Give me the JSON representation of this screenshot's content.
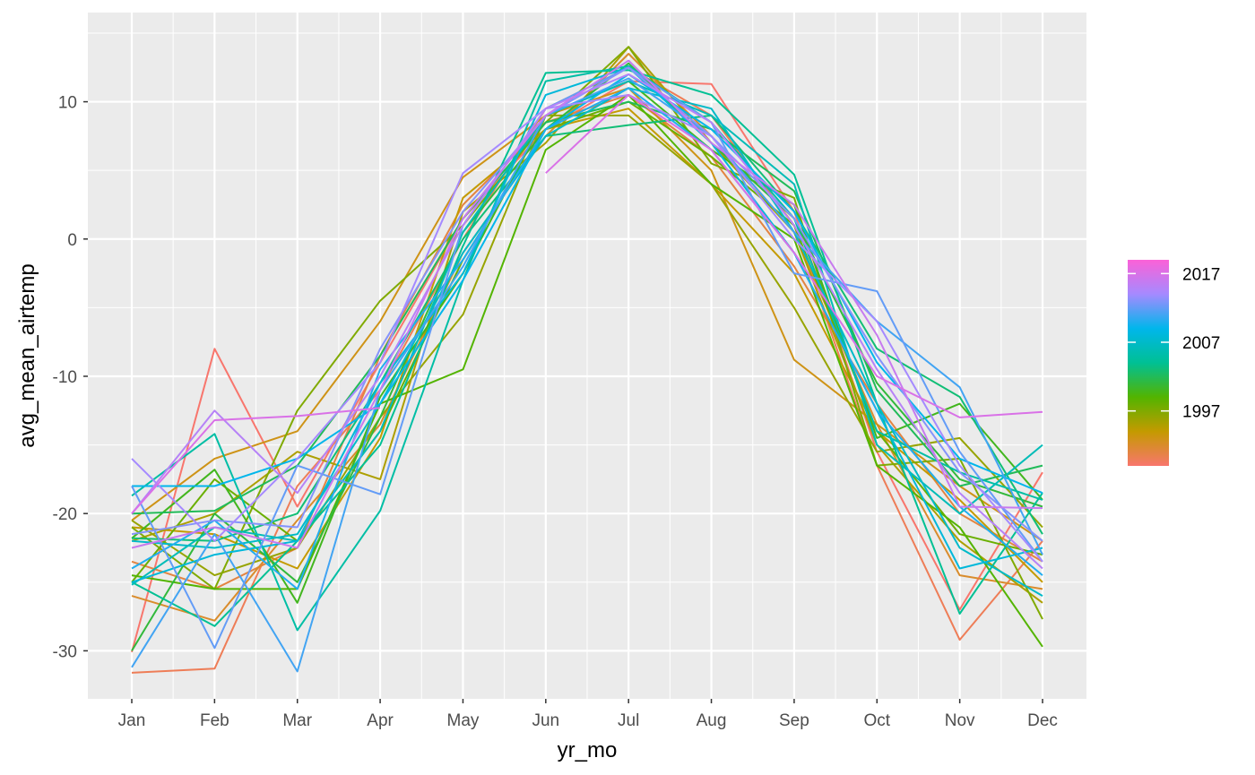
{
  "chart_data": {
    "type": "line",
    "title": "",
    "xlabel": "yr_mo",
    "ylabel": "avg_mean_airtemp",
    "categories": [
      "Jan",
      "Feb",
      "Mar",
      "Apr",
      "May",
      "Jun",
      "Jul",
      "Aug",
      "Sep",
      "Oct",
      "Nov",
      "Dec"
    ],
    "ylim": [
      -33.5,
      16.5
    ],
    "yticks": [
      -30,
      -20,
      -10,
      0,
      10
    ],
    "ytick_labels": [
      "-30",
      "-20",
      "-10",
      "0",
      "10"
    ],
    "grid": true,
    "background": "#ebebeb",
    "legend": {
      "position": "right",
      "type": "continuous-colorbar",
      "range": [
        1989,
        2019
      ],
      "tick_values": [
        1997,
        2007,
        2017
      ],
      "tick_labels": [
        "1997",
        "2007",
        "2017"
      ],
      "color_stops": [
        "#F8766D",
        "#C49A00",
        "#53B400",
        "#00C094",
        "#00B6EB",
        "#A58AFF",
        "#FB61D7"
      ]
    },
    "series": [
      {
        "year": 1989,
        "values": [
          -30.1,
          -8.0,
          -19.5,
          -9.0,
          1.5,
          8.0,
          11.5,
          11.3,
          2.0,
          -15.5,
          -27.0,
          -17.0
        ]
      },
      {
        "year": 1990,
        "values": [
          -31.6,
          -31.3,
          -18.0,
          -11.0,
          0.0,
          9.5,
          12.5,
          9.0,
          1.0,
          -16.5,
          -29.2,
          -22.0
        ]
      },
      {
        "year": 1991,
        "values": [
          -23.5,
          -25.5,
          -22.5,
          -8.5,
          2.5,
          8.5,
          10.5,
          6.0,
          -2.0,
          -12.0,
          -20.0,
          -23.5
        ]
      },
      {
        "year": 1992,
        "values": [
          -26.0,
          -27.8,
          -20.5,
          -13.5,
          -1.0,
          7.5,
          13.5,
          7.5,
          0.5,
          -13.5,
          -24.5,
          -25.5
        ]
      },
      {
        "year": 1993,
        "values": [
          -20.5,
          -16.0,
          -14.0,
          -6.0,
          4.5,
          9.0,
          11.0,
          5.0,
          -8.8,
          -13.5,
          -18.0,
          -22.0
        ]
      },
      {
        "year": 1994,
        "values": [
          -21.0,
          -21.5,
          -24.0,
          -14.5,
          3.0,
          8.0,
          9.5,
          4.0,
          -2.5,
          -14.0,
          -19.0,
          -25.0
        ]
      },
      {
        "year": 1995,
        "values": [
          -22.0,
          -20.0,
          -15.5,
          -17.5,
          2.0,
          7.0,
          14.0,
          7.0,
          0.5,
          -15.0,
          -22.0,
          -26.5
        ]
      },
      {
        "year": 1996,
        "values": [
          -20.5,
          -24.5,
          -22.5,
          -13.0,
          -5.5,
          9.0,
          9.0,
          4.0,
          -5.0,
          -15.5,
          -14.5,
          -21.0
        ]
      },
      {
        "year": 1997,
        "values": [
          -21.0,
          -25.5,
          -12.5,
          -4.5,
          1.0,
          8.5,
          14.0,
          5.5,
          3.0,
          -16.5,
          -16.0,
          -27.7
        ]
      },
      {
        "year": 1998,
        "values": [
          -25.0,
          -17.5,
          -22.0,
          -14.0,
          -1.5,
          8.0,
          10.0,
          6.0,
          1.0,
          -14.0,
          -21.5,
          -23.0
        ]
      },
      {
        "year": 1999,
        "values": [
          -24.5,
          -25.5,
          -25.5,
          -12.0,
          -9.5,
          6.5,
          10.5,
          4.0,
          0.0,
          -16.5,
          -21.0,
          -29.7
        ]
      },
      {
        "year": 2000,
        "values": [
          -21.8,
          -16.8,
          -26.5,
          -11.5,
          -2.5,
          9.0,
          11.5,
          6.5,
          2.5,
          -14.5,
          -12.0,
          -19.0
        ]
      },
      {
        "year": 2001,
        "values": [
          -30.0,
          -20.0,
          -25.0,
          -13.0,
          0.5,
          8.0,
          12.8,
          7.0,
          1.5,
          -10.5,
          -17.5,
          -19.5
        ]
      },
      {
        "year": 2002,
        "values": [
          -20.0,
          -19.8,
          -16.5,
          -8.5,
          1.5,
          8.5,
          10.0,
          8.0,
          3.5,
          -11.0,
          -18.0,
          -16.5
        ]
      },
      {
        "year": 2003,
        "values": [
          -21.8,
          -22.0,
          -20.0,
          -10.5,
          0.0,
          7.5,
          8.3,
          9.0,
          2.0,
          -8.0,
          -11.5,
          -21.5
        ]
      },
      {
        "year": 2004,
        "values": [
          -25.0,
          -28.2,
          -22.0,
          -15.0,
          -0.5,
          12.1,
          12.3,
          10.5,
          4.7,
          -12.0,
          -27.3,
          -18.5
        ]
      },
      {
        "year": 2005,
        "values": [
          -18.7,
          -14.2,
          -28.5,
          -19.8,
          -3.0,
          11.5,
          12.6,
          8.5,
          1.5,
          -14.0,
          -17.0,
          -19.0
        ]
      },
      {
        "year": 2006,
        "values": [
          -25.2,
          -21.0,
          -22.0,
          -14.0,
          0.5,
          9.0,
          11.5,
          9.0,
          4.0,
          -15.0,
          -20.0,
          -15.0
        ]
      },
      {
        "year": 2007,
        "values": [
          -22.0,
          -22.5,
          -21.5,
          -12.0,
          -1.0,
          7.5,
          11.0,
          9.5,
          0.5,
          -12.0,
          -22.5,
          -26.0
        ]
      },
      {
        "year": 2008,
        "values": [
          -25.0,
          -23.0,
          -22.0,
          -10.5,
          -2.5,
          10.5,
          12.5,
          7.0,
          -1.0,
          -12.5,
          -24.0,
          -22.5
        ]
      },
      {
        "year": 2009,
        "values": [
          -18.0,
          -18.0,
          -16.0,
          -12.0,
          -3.0,
          8.0,
          12.0,
          8.0,
          2.0,
          -9.0,
          -16.0,
          -18.5
        ]
      },
      {
        "year": 2010,
        "values": [
          -24.0,
          -20.5,
          -25.5,
          -9.5,
          -1.5,
          8.0,
          11.0,
          6.5,
          -1.0,
          -12.5,
          -19.5,
          -24.5
        ]
      },
      {
        "year": 2011,
        "values": [
          -31.2,
          -21.5,
          -31.5,
          -11.0,
          -2.0,
          9.0,
          11.7,
          7.5,
          0.5,
          -6.0,
          -10.8,
          -23.0
        ]
      },
      {
        "year": 2012,
        "values": [
          -18.0,
          -29.8,
          -16.5,
          -18.6,
          1.0,
          9.5,
          12.5,
          8.5,
          -2.5,
          -3.8,
          -15.5,
          -23.5
        ]
      },
      {
        "year": 2013,
        "values": [
          -21.5,
          -20.5,
          -21.0,
          -8.0,
          2.0,
          9.0,
          12.5,
          7.5,
          1.5,
          -8.5,
          -17.0,
          -22.0
        ]
      },
      {
        "year": 2014,
        "values": [
          -16.0,
          -22.0,
          -16.0,
          -9.0,
          4.8,
          9.5,
          10.5,
          7.5,
          0.0,
          -6.0,
          -16.5,
          -23.5
        ]
      },
      {
        "year": 2015,
        "values": [
          -20.0,
          -12.5,
          -18.5,
          -10.0,
          1.0,
          9.5,
          12.0,
          8.5,
          1.0,
          -9.5,
          -18.5,
          -24.0
        ]
      },
      {
        "year": 2016,
        "values": [
          -22.5,
          -21.0,
          -22.5,
          -11.0,
          1.5,
          9.0,
          13.0,
          7.0,
          2.5,
          -7.0,
          -19.5,
          -19.6
        ]
      },
      {
        "year": 2017,
        "values": [
          -20.0,
          -13.2,
          -12.9,
          -12.3,
          null,
          4.8,
          10.5,
          6.5,
          -1.0,
          -10.0,
          -13.0,
          -12.6
        ]
      }
    ]
  }
}
